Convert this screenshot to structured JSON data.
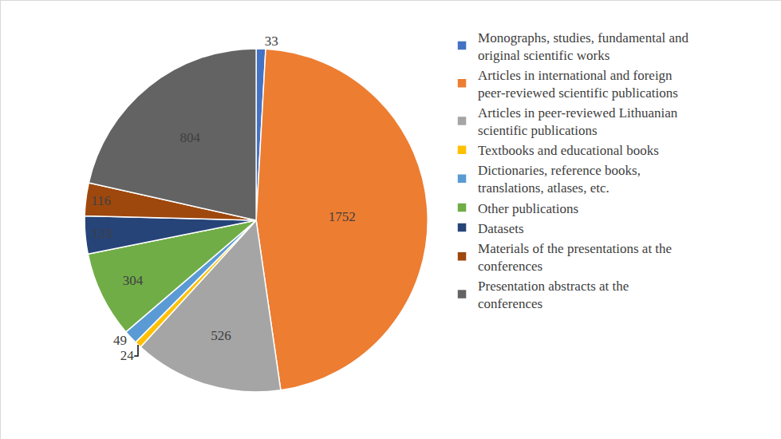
{
  "chart_data": {
    "type": "pie",
    "categories": [
      "Monographs, studies, fundamental and original scientific works",
      "Articles in international and foreign peer-reviewed scientific publications",
      "Articles in peer-reviewed Lithuanian scientific publications",
      "Textbooks and educational books",
      "Dictionaries, reference books, translations, atlases, etc.",
      "Other publications",
      "Datasets",
      "Materials of the presentations at the conferences",
      "Presentation abstracts at the conferences"
    ],
    "values": [
      33,
      1752,
      526,
      24,
      49,
      304,
      133,
      116,
      804
    ],
    "colors": [
      "#4472c4",
      "#ed7d31",
      "#a5a5a5",
      "#ffc000",
      "#5b9bd5",
      "#70ad47",
      "#264478",
      "#9e480e",
      "#636363"
    ],
    "data_labels": true,
    "legend": "right"
  }
}
